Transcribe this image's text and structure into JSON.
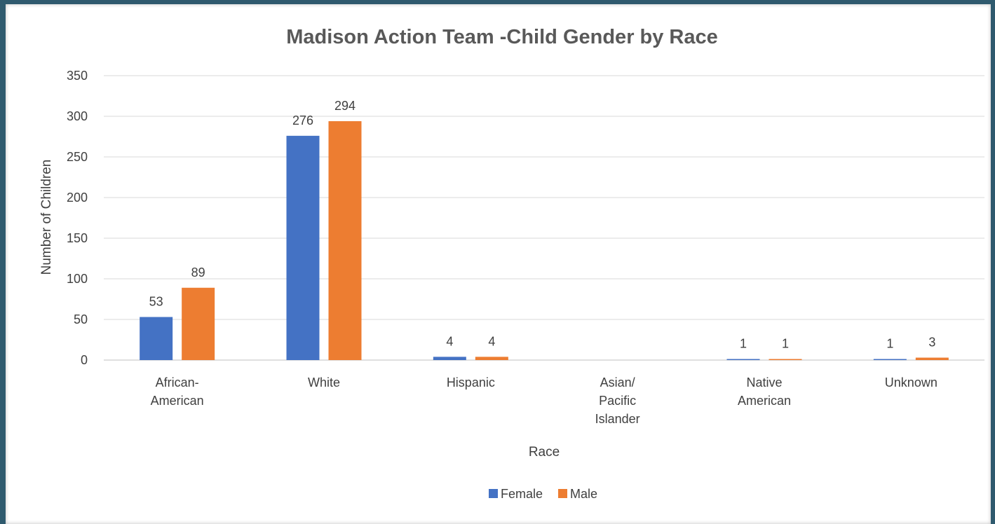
{
  "chart_data": {
    "type": "bar",
    "title": "Madison Action Team -Child Gender by Race",
    "xlabel": "Race",
    "ylabel": "Number of Children",
    "ylim": [
      0,
      350
    ],
    "yticks": [
      0,
      50,
      100,
      150,
      200,
      250,
      300,
      350
    ],
    "grid": true,
    "legend_placement": "bottom",
    "categories": [
      [
        "African-",
        "American"
      ],
      [
        "White"
      ],
      [
        "Hispanic"
      ],
      [
        "Asian/",
        "Pacific",
        "Islander"
      ],
      [
        "Native",
        "American"
      ],
      [
        "Unknown"
      ]
    ],
    "series": [
      {
        "name": "Female",
        "color": "#4472c4",
        "values": [
          53,
          276,
          4,
          null,
          1,
          1
        ]
      },
      {
        "name": "Male",
        "color": "#ed7d31",
        "values": [
          89,
          294,
          4,
          null,
          1,
          3
        ]
      }
    ]
  }
}
